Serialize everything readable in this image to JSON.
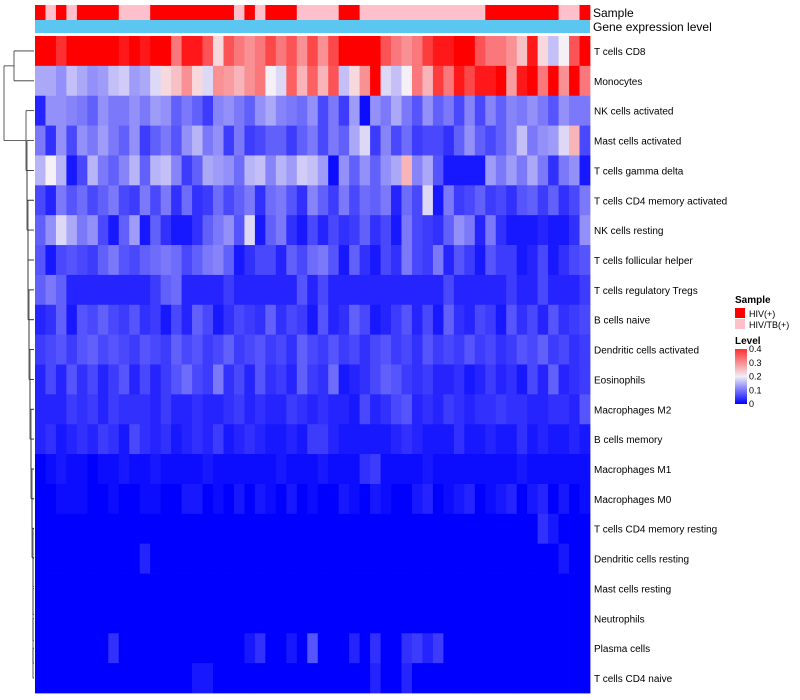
{
  "chart_data": {
    "type": "heatmap",
    "title": "",
    "annotation_tracks": [
      {
        "name": "Sample",
        "label": "Sample"
      },
      {
        "name": "Gene expression level",
        "label": "Gene expression level"
      }
    ],
    "sample_groups": [
      "HIV(+)",
      "HIV/TB(+)",
      "HIV(+)",
      "HIV/TB(+)",
      "HIV(+)",
      "HIV(+)",
      "HIV(+)",
      "HIV(+)",
      "HIV/TB(+)",
      "HIV/TB(+)",
      "HIV/TB(+)",
      "HIV(+)",
      "HIV(+)",
      "HIV(+)",
      "HIV(+)",
      "HIV(+)",
      "HIV(+)",
      "HIV(+)",
      "HIV(+)",
      "HIV/TB(+)",
      "HIV(+)",
      "HIV/TB(+)",
      "HIV(+)",
      "HIV(+)",
      "HIV(+)",
      "HIV/TB(+)",
      "HIV/TB(+)",
      "HIV/TB(+)",
      "HIV/TB(+)",
      "HIV(+)",
      "HIV(+)",
      "HIV/TB(+)",
      "HIV/TB(+)",
      "HIV/TB(+)",
      "HIV/TB(+)",
      "HIV/TB(+)",
      "HIV/TB(+)",
      "HIV/TB(+)",
      "HIV/TB(+)",
      "HIV/TB(+)",
      "HIV/TB(+)",
      "HIV/TB(+)",
      "HIV/TB(+)",
      "HIV(+)",
      "HIV(+)",
      "HIV(+)",
      "HIV(+)",
      "HIV(+)",
      "HIV(+)",
      "HIV(+)",
      "HIV/TB(+)",
      "HIV/TB(+)",
      "HIV(+)"
    ],
    "rows": [
      "T cells CD8",
      "Monocytes",
      "NK cells activated",
      "Mast cells activated",
      "T cells gamma delta",
      "T cells CD4 memory activated",
      "NK cells resting",
      "T cells follicular helper",
      "T cells regulatory  Tregs",
      "B cells naive",
      "Dendritic cells activated",
      "Eosinophils",
      "Macrophages M2",
      "B cells memory",
      "Macrophages M1",
      "Macrophages M0",
      "T cells CD4 memory resting",
      "Dendritic cells resting",
      "Mast cells resting",
      "Neutrophils",
      "Plasma cells",
      "T cells CD4 naive"
    ],
    "matrix": [
      [
        0.42,
        0.42,
        0.36,
        0.45,
        0.42,
        0.46,
        0.41,
        0.44,
        0.38,
        0.43,
        0.38,
        0.4,
        0.45,
        0.3,
        0.38,
        0.38,
        0.33,
        0.22,
        0.33,
        0.3,
        0.28,
        0.3,
        0.34,
        0.3,
        0.33,
        0.28,
        0.34,
        0.28,
        0.34,
        0.4,
        0.42,
        0.4,
        0.46,
        0.33,
        0.3,
        0.28,
        0.3,
        0.35,
        0.38,
        0.38,
        0.4,
        0.42,
        0.33,
        0.3,
        0.3,
        0.28,
        0.24,
        0.38,
        0.22,
        0.16,
        0.2,
        0.33,
        0.4
      ],
      [
        0.14,
        0.14,
        0.12,
        0.16,
        0.14,
        0.12,
        0.13,
        0.16,
        0.17,
        0.13,
        0.14,
        0.18,
        0.22,
        0.24,
        0.28,
        0.22,
        0.18,
        0.28,
        0.27,
        0.25,
        0.28,
        0.3,
        0.2,
        0.18,
        0.32,
        0.25,
        0.32,
        0.25,
        0.33,
        0.16,
        0.22,
        0.28,
        0.46,
        0.18,
        0.16,
        0.2,
        0.3,
        0.25,
        0.35,
        0.3,
        0.38,
        0.34,
        0.38,
        0.38,
        0.45,
        0.27,
        0.38,
        0.44,
        0.3,
        0.45,
        0.28,
        0.4,
        0.3
      ],
      [
        0.03,
        0.12,
        0.12,
        0.11,
        0.1,
        0.08,
        0.12,
        0.1,
        0.1,
        0.12,
        0.1,
        0.13,
        0.12,
        0.08,
        0.1,
        0.08,
        0.05,
        0.11,
        0.12,
        0.1,
        0.08,
        0.12,
        0.14,
        0.11,
        0.1,
        0.09,
        0.12,
        0.06,
        0.1,
        0.05,
        0.13,
        0.01,
        0.12,
        0.1,
        0.14,
        0.1,
        0.07,
        0.12,
        0.08,
        0.1,
        0.06,
        0.11,
        0.06,
        0.11,
        0.08,
        0.11,
        0.1,
        0.12,
        0.1,
        0.07,
        0.12,
        0.1,
        0.1
      ],
      [
        0.1,
        0.04,
        0.12,
        0.06,
        0.12,
        0.1,
        0.13,
        0.1,
        0.08,
        0.12,
        0.05,
        0.08,
        0.1,
        0.07,
        0.12,
        0.15,
        0.1,
        0.12,
        0.05,
        0.1,
        0.05,
        0.06,
        0.08,
        0.08,
        0.05,
        0.08,
        0.1,
        0.06,
        0.1,
        0.08,
        0.14,
        0.18,
        0.05,
        0.11,
        0.06,
        0.09,
        0.05,
        0.06,
        0.06,
        0.04,
        0.08,
        0.12,
        0.08,
        0.06,
        0.08,
        0.11,
        0.16,
        0.1,
        0.12,
        0.13,
        0.18,
        0.25,
        0.06
      ],
      [
        0.15,
        0.2,
        0.15,
        0.02,
        0.06,
        0.15,
        0.1,
        0.08,
        0.11,
        0.15,
        0.08,
        0.15,
        0.16,
        0.11,
        0.05,
        0.08,
        0.14,
        0.13,
        0.12,
        0.09,
        0.15,
        0.16,
        0.11,
        0.15,
        0.13,
        0.17,
        0.16,
        0.13,
        0.01,
        0.12,
        0.08,
        0.12,
        0.08,
        0.12,
        0.14,
        0.25,
        0.11,
        0.14,
        0.07,
        0.02,
        0.02,
        0.02,
        0.02,
        0.13,
        0.1,
        0.13,
        0.1,
        0.14,
        0.1,
        0.04,
        0.1,
        0.12,
        0.02
      ],
      [
        0.06,
        0.03,
        0.1,
        0.07,
        0.09,
        0.06,
        0.08,
        0.1,
        0.06,
        0.05,
        0.1,
        0.06,
        0.1,
        0.04,
        0.09,
        0.04,
        0.05,
        0.09,
        0.06,
        0.08,
        0.1,
        0.04,
        0.09,
        0.1,
        0.07,
        0.04,
        0.11,
        0.08,
        0.05,
        0.1,
        0.06,
        0.09,
        0.08,
        0.1,
        0.03,
        0.09,
        0.06,
        0.18,
        0.02,
        0.1,
        0.05,
        0.06,
        0.08,
        0.05,
        0.06,
        0.04,
        0.07,
        0.08,
        0.05,
        0.08,
        0.04,
        0.06,
        0.1
      ],
      [
        0.08,
        0.12,
        0.18,
        0.14,
        0.1,
        0.12,
        0.06,
        0.02,
        0.08,
        0.13,
        0.02,
        0.08,
        0.04,
        0.02,
        0.02,
        0.04,
        0.08,
        0.1,
        0.12,
        0.07,
        0.18,
        0.02,
        0.08,
        0.1,
        0.04,
        0.02,
        0.06,
        0.03,
        0.06,
        0.04,
        0.05,
        0.08,
        0.04,
        0.06,
        0.02,
        0.1,
        0.06,
        0.05,
        0.04,
        0.08,
        0.12,
        0.1,
        0.03,
        0.1,
        0.04,
        0.02,
        0.02,
        0.02,
        0.03,
        0.02,
        0.02,
        0.04,
        0.12
      ],
      [
        0.07,
        0.02,
        0.06,
        0.07,
        0.06,
        0.05,
        0.08,
        0.1,
        0.07,
        0.06,
        0.08,
        0.09,
        0.1,
        0.09,
        0.06,
        0.08,
        0.1,
        0.11,
        0.08,
        0.02,
        0.04,
        0.06,
        0.06,
        0.03,
        0.08,
        0.06,
        0.09,
        0.1,
        0.07,
        0.02,
        0.08,
        0.04,
        0.02,
        0.06,
        0.04,
        0.1,
        0.06,
        0.05,
        0.1,
        0.03,
        0.07,
        0.05,
        0.02,
        0.07,
        0.05,
        0.05,
        0.02,
        0.03,
        0.06,
        0.02,
        0.04,
        0.06,
        0.07
      ],
      [
        0.08,
        0.1,
        0.08,
        0.03,
        0.03,
        0.03,
        0.03,
        0.03,
        0.03,
        0.03,
        0.03,
        0.05,
        0.08,
        0.09,
        0.03,
        0.03,
        0.03,
        0.03,
        0.05,
        0.03,
        0.03,
        0.03,
        0.03,
        0.03,
        0.03,
        0.07,
        0.03,
        0.06,
        0.03,
        0.03,
        0.03,
        0.03,
        0.03,
        0.03,
        0.03,
        0.03,
        0.03,
        0.03,
        0.03,
        0.06,
        0.03,
        0.03,
        0.03,
        0.03,
        0.03,
        0.05,
        0.03,
        0.03,
        0.06,
        0.03,
        0.03,
        0.03,
        0.05
      ],
      [
        0.03,
        0.04,
        0.08,
        0.02,
        0.07,
        0.06,
        0.08,
        0.06,
        0.05,
        0.07,
        0.04,
        0.05,
        0.02,
        0.06,
        0.03,
        0.08,
        0.06,
        0.02,
        0.04,
        0.06,
        0.05,
        0.04,
        0.08,
        0.04,
        0.06,
        0.05,
        0.02,
        0.07,
        0.03,
        0.04,
        0.08,
        0.06,
        0.02,
        0.03,
        0.05,
        0.07,
        0.03,
        0.06,
        0.02,
        0.08,
        0.04,
        0.03,
        0.06,
        0.05,
        0.02,
        0.07,
        0.04,
        0.06,
        0.03,
        0.07,
        0.04,
        0.05,
        0.06
      ],
      [
        0.05,
        0.06,
        0.07,
        0.05,
        0.07,
        0.08,
        0.06,
        0.07,
        0.06,
        0.05,
        0.07,
        0.06,
        0.05,
        0.08,
        0.06,
        0.07,
        0.05,
        0.06,
        0.08,
        0.05,
        0.06,
        0.07,
        0.05,
        0.06,
        0.04,
        0.08,
        0.06,
        0.05,
        0.07,
        0.05,
        0.06,
        0.04,
        0.06,
        0.07,
        0.05,
        0.06,
        0.04,
        0.07,
        0.05,
        0.06,
        0.05,
        0.07,
        0.05,
        0.06,
        0.04,
        0.05,
        0.07,
        0.06,
        0.08,
        0.05,
        0.06,
        0.04,
        0.05
      ],
      [
        0.03,
        0.06,
        0.03,
        0.07,
        0.04,
        0.06,
        0.03,
        0.05,
        0.07,
        0.03,
        0.06,
        0.03,
        0.05,
        0.07,
        0.09,
        0.06,
        0.05,
        0.1,
        0.04,
        0.06,
        0.03,
        0.07,
        0.04,
        0.05,
        0.03,
        0.08,
        0.05,
        0.04,
        0.09,
        0.02,
        0.03,
        0.04,
        0.06,
        0.08,
        0.07,
        0.05,
        0.04,
        0.05,
        0.03,
        0.03,
        0.04,
        0.02,
        0.03,
        0.05,
        0.03,
        0.04,
        0.02,
        0.06,
        0.03,
        0.08,
        0.03,
        0.04,
        0.05
      ],
      [
        0.03,
        0.03,
        0.03,
        0.05,
        0.04,
        0.05,
        0.03,
        0.05,
        0.04,
        0.04,
        0.04,
        0.03,
        0.05,
        0.03,
        0.03,
        0.04,
        0.03,
        0.03,
        0.04,
        0.05,
        0.03,
        0.04,
        0.03,
        0.03,
        0.05,
        0.04,
        0.03,
        0.04,
        0.03,
        0.03,
        0.02,
        0.06,
        0.03,
        0.04,
        0.06,
        0.07,
        0.03,
        0.04,
        0.03,
        0.05,
        0.04,
        0.03,
        0.04,
        0.04,
        0.05,
        0.04,
        0.04,
        0.03,
        0.03,
        0.04,
        0.04,
        0.03,
        0.07
      ],
      [
        0.03,
        0.04,
        0.02,
        0.03,
        0.04,
        0.03,
        0.05,
        0.04,
        0.02,
        0.06,
        0.04,
        0.03,
        0.04,
        0.02,
        0.03,
        0.04,
        0.03,
        0.05,
        0.02,
        0.03,
        0.04,
        0.03,
        0.02,
        0.02,
        0.03,
        0.02,
        0.05,
        0.05,
        0.03,
        0.02,
        0.02,
        0.02,
        0.02,
        0.02,
        0.03,
        0.04,
        0.03,
        0.02,
        0.02,
        0.02,
        0.04,
        0.02,
        0.02,
        0.03,
        0.02,
        0.02,
        0.04,
        0.02,
        0.03,
        0.02,
        0.02,
        0.03,
        0.02
      ],
      [
        0.0,
        0.01,
        0.02,
        0.01,
        0.01,
        0.0,
        0.01,
        0.01,
        0.02,
        0.01,
        0.01,
        0.02,
        0.01,
        0.01,
        0.01,
        0.01,
        0.02,
        0.01,
        0.01,
        0.01,
        0.01,
        0.01,
        0.01,
        0.02,
        0.01,
        0.01,
        0.01,
        0.02,
        0.01,
        0.01,
        0.01,
        0.04,
        0.05,
        0.01,
        0.01,
        0.01,
        0.01,
        0.02,
        0.01,
        0.01,
        0.01,
        0.01,
        0.01,
        0.01,
        0.01,
        0.01,
        0.02,
        0.01,
        0.01,
        0.01,
        0.01,
        0.01,
        0.01
      ],
      [
        0.0,
        0.0,
        0.01,
        0.01,
        0.01,
        0.0,
        0.0,
        0.01,
        0.0,
        0.0,
        0.01,
        0.01,
        0.0,
        0.0,
        0.02,
        0.02,
        0.0,
        0.01,
        0.0,
        0.02,
        0.0,
        0.02,
        0.01,
        0.0,
        0.02,
        0.0,
        0.01,
        0.0,
        0.0,
        0.02,
        0.01,
        0.0,
        0.02,
        0.01,
        0.0,
        0.0,
        0.02,
        0.03,
        0.0,
        0.01,
        0.02,
        0.03,
        0.0,
        0.01,
        0.02,
        0.03,
        0.0,
        0.02,
        0.03,
        0.0,
        0.02,
        0.0,
        0.01
      ],
      [
        0.0,
        0.0,
        0.0,
        0.0,
        0.0,
        0.0,
        0.0,
        0.0,
        0.0,
        0.0,
        0.0,
        0.0,
        0.0,
        0.0,
        0.0,
        0.0,
        0.0,
        0.0,
        0.0,
        0.0,
        0.0,
        0.0,
        0.0,
        0.0,
        0.0,
        0.0,
        0.0,
        0.0,
        0.0,
        0.0,
        0.0,
        0.0,
        0.0,
        0.0,
        0.0,
        0.0,
        0.0,
        0.0,
        0.0,
        0.0,
        0.0,
        0.0,
        0.0,
        0.0,
        0.0,
        0.0,
        0.0,
        0.0,
        0.04,
        0.02,
        0.0,
        0.0,
        0.0
      ],
      [
        0.0,
        0.0,
        0.0,
        0.0,
        0.0,
        0.0,
        0.0,
        0.0,
        0.0,
        0.0,
        0.03,
        0.0,
        0.0,
        0.0,
        0.0,
        0.0,
        0.0,
        0.0,
        0.0,
        0.0,
        0.0,
        0.0,
        0.0,
        0.0,
        0.0,
        0.0,
        0.0,
        0.0,
        0.0,
        0.0,
        0.0,
        0.0,
        0.0,
        0.0,
        0.0,
        0.0,
        0.0,
        0.0,
        0.0,
        0.0,
        0.0,
        0.0,
        0.0,
        0.0,
        0.0,
        0.0,
        0.0,
        0.0,
        0.0,
        0.0,
        0.02,
        0.0,
        0.0
      ],
      [
        0.0,
        0.0,
        0.0,
        0.0,
        0.0,
        0.0,
        0.0,
        0.0,
        0.0,
        0.0,
        0.0,
        0.0,
        0.0,
        0.0,
        0.0,
        0.0,
        0.0,
        0.0,
        0.0,
        0.0,
        0.0,
        0.0,
        0.0,
        0.0,
        0.0,
        0.0,
        0.0,
        0.0,
        0.0,
        0.0,
        0.0,
        0.0,
        0.0,
        0.0,
        0.0,
        0.0,
        0.0,
        0.0,
        0.0,
        0.0,
        0.0,
        0.0,
        0.0,
        0.0,
        0.0,
        0.0,
        0.0,
        0.0,
        0.0,
        0.0,
        0.0,
        0.0,
        0.0
      ],
      [
        0.0,
        0.0,
        0.0,
        0.0,
        0.0,
        0.0,
        0.0,
        0.0,
        0.0,
        0.0,
        0.0,
        0.0,
        0.0,
        0.0,
        0.0,
        0.0,
        0.0,
        0.0,
        0.0,
        0.0,
        0.0,
        0.0,
        0.0,
        0.0,
        0.0,
        0.0,
        0.0,
        0.0,
        0.0,
        0.0,
        0.0,
        0.0,
        0.0,
        0.0,
        0.0,
        0.0,
        0.0,
        0.0,
        0.0,
        0.0,
        0.0,
        0.0,
        0.0,
        0.0,
        0.0,
        0.0,
        0.0,
        0.0,
        0.0,
        0.0,
        0.0,
        0.0,
        0.0
      ],
      [
        0.0,
        0.0,
        0.0,
        0.0,
        0.0,
        0.0,
        0.0,
        0.04,
        0.0,
        0.0,
        0.0,
        0.0,
        0.0,
        0.0,
        0.0,
        0.0,
        0.0,
        0.0,
        0.0,
        0.0,
        0.02,
        0.04,
        0.0,
        0.0,
        0.02,
        0.0,
        0.07,
        0.0,
        0.0,
        0.0,
        0.03,
        0.0,
        0.04,
        0.0,
        0.0,
        0.04,
        0.05,
        0.03,
        0.05,
        0.0,
        0.0,
        0.0,
        0.0,
        0.0,
        0.0,
        0.0,
        0.0,
        0.0,
        0.0,
        0.0,
        0.0,
        0.0,
        0.0
      ],
      [
        0.0,
        0.0,
        0.0,
        0.0,
        0.0,
        0.0,
        0.0,
        0.0,
        0.0,
        0.0,
        0.0,
        0.0,
        0.0,
        0.0,
        0.0,
        0.02,
        0.02,
        0.0,
        0.0,
        0.0,
        0.0,
        0.0,
        0.0,
        0.0,
        0.0,
        0.0,
        0.0,
        0.0,
        0.0,
        0.0,
        0.0,
        0.0,
        0.03,
        0.0,
        0.0,
        0.03,
        0.0,
        0.0,
        0.0,
        0.0,
        0.0,
        0.0,
        0.0,
        0.0,
        0.0,
        0.0,
        0.0,
        0.0,
        0.0,
        0.0,
        0.0,
        0.0,
        0.0
      ]
    ],
    "color_scale": {
      "min": 0,
      "max": 0.4,
      "low": "#0000ff",
      "mid": "#f5f0f5",
      "high": "#ff0000",
      "midpoint": 0.2
    },
    "group_colors": {
      "HIV(+)": "#ff0000",
      "HIV/TB(+)": "#ffc0cb"
    },
    "expression_color": "#5bc6f0",
    "legend": {
      "sample_title": "Sample",
      "sample_items": [
        "HIV(+)",
        "HIV/TB(+)"
      ],
      "level_title": "Level",
      "level_ticks": [
        "0.4",
        "0.3",
        "0.2",
        "0.1",
        "0"
      ],
      "level_values": [
        0.4,
        0.3,
        0.2,
        0.1,
        0
      ],
      "placement": "right"
    },
    "dendrogram": {
      "clusters": [
        [
          "T cells CD8",
          "Monocytes"
        ],
        [
          "NK cells activated",
          "Mast cells activated",
          "T cells gamma delta",
          "T cells CD4 memory activated",
          "NK cells resting",
          "T cells follicular helper",
          "T cells regulatory  Tregs",
          "B cells naive",
          "Dendritic cells activated",
          "Eosinophils",
          "Macrophages M2",
          "B cells memory",
          "Macrophages M1",
          "Macrophages M0",
          "T cells CD4 memory resting",
          "Dendritic cells resting",
          "Mast cells resting",
          "Neutrophils",
          "Plasma cells",
          "T cells CD4 naive"
        ]
      ]
    }
  }
}
